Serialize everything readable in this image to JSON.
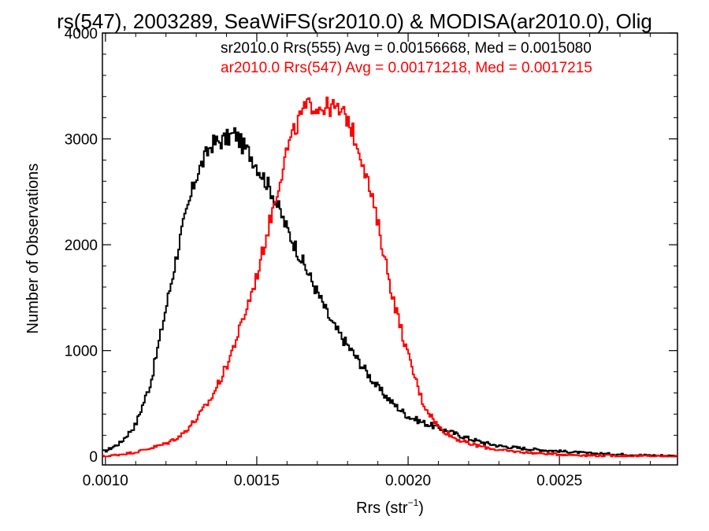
{
  "chart_data": {
    "type": "line",
    "title": "rs(547), 2003289, SeaWiFS(sr2010.0) & MODISA(ar2010.0), Olig",
    "xlabel": "Rrs (str",
    "xlabel_sup": "−1",
    "xlabel_close": ")",
    "ylabel": "Number of Observations",
    "xlim": [
      0.00099,
      0.00289
    ],
    "ylim": [
      -80,
      4000
    ],
    "xticks": [
      0.001,
      0.0015,
      0.002,
      0.0025
    ],
    "xtick_labels": [
      "0.0010",
      "0.0015",
      "0.0020",
      "0.0025"
    ],
    "yticks": [
      0,
      1000,
      2000,
      3000,
      4000
    ],
    "ytick_labels": [
      "0",
      "1000",
      "2000",
      "3000",
      "4000"
    ],
    "grid": false,
    "legend_position": "top",
    "series": [
      {
        "name": "sr2010.0 Rrs(555)",
        "legend": "sr2010.0 Rrs(555) Avg = 0.00156668, Med = 0.0015080",
        "color": "#000000",
        "x": [
          0.001,
          0.00105,
          0.0011,
          0.00115,
          0.0012,
          0.00125,
          0.0013,
          0.00135,
          0.0014,
          0.00143,
          0.00145,
          0.00148,
          0.0015,
          0.00155,
          0.0016,
          0.00165,
          0.0017,
          0.00175,
          0.0018,
          0.00185,
          0.0019,
          0.00195,
          0.002,
          0.00205,
          0.0021,
          0.00215,
          0.0022,
          0.00225,
          0.0023,
          0.0024,
          0.0025,
          0.0026,
          0.0027,
          0.0028,
          0.00289
        ],
        "y": [
          50,
          130,
          300,
          700,
          1400,
          2100,
          2650,
          2950,
          3000,
          3050,
          2950,
          2850,
          2750,
          2500,
          2150,
          1850,
          1550,
          1250,
          1050,
          850,
          650,
          500,
          380,
          320,
          270,
          220,
          170,
          130,
          100,
          70,
          50,
          30,
          20,
          10,
          5
        ]
      },
      {
        "name": "ar2010.0 Rrs(547)",
        "legend": "ar2010.0 Rrs(547) Avg = 0.00171218, Med = 0.0017215",
        "color": "#ff0000",
        "x": [
          0.001,
          0.0011,
          0.0012,
          0.00125,
          0.0013,
          0.00135,
          0.0014,
          0.00145,
          0.0015,
          0.00155,
          0.0016,
          0.00165,
          0.00168,
          0.0017,
          0.00175,
          0.0018,
          0.00185,
          0.0019,
          0.00195,
          0.002,
          0.00205,
          0.0021,
          0.00215,
          0.0022,
          0.00225,
          0.0023,
          0.0024,
          0.0025,
          0.0026,
          0.0027,
          0.0028,
          0.00289
        ],
        "y": [
          0,
          40,
          120,
          200,
          350,
          550,
          850,
          1250,
          1700,
          2300,
          2900,
          3250,
          3330,
          3300,
          3300,
          3200,
          2800,
          2200,
          1500,
          950,
          500,
          280,
          180,
          120,
          90,
          60,
          35,
          20,
          10,
          5,
          2,
          0
        ]
      }
    ]
  }
}
